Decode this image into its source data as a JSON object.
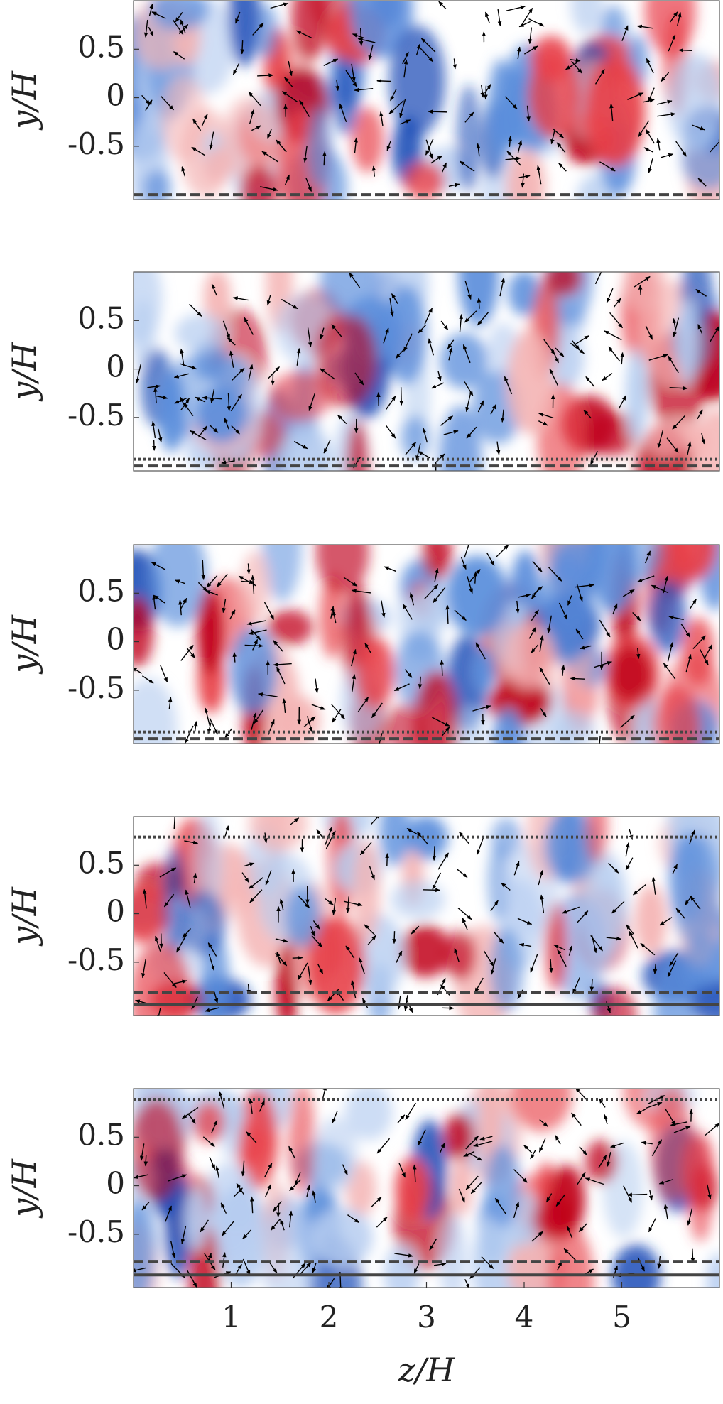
{
  "chart_data": [
    {
      "type": "heatmap",
      "ylabel": "y/H",
      "xlim": [
        0,
        6
      ],
      "ylim": [
        -1.05,
        1.0
      ],
      "yticks": [
        -0.5,
        0,
        0.5
      ],
      "lines": [
        {
          "value": -1.0,
          "style": "dashed"
        }
      ]
    },
    {
      "type": "heatmap",
      "ylabel": "y/H",
      "xlim": [
        0,
        6
      ],
      "ylim": [
        -1.05,
        1.0
      ],
      "yticks": [
        -0.5,
        0,
        0.5
      ],
      "lines": [
        {
          "value": -0.93,
          "style": "dotted"
        },
        {
          "value": -1.0,
          "style": "dashed"
        }
      ]
    },
    {
      "type": "heatmap",
      "ylabel": "y/H",
      "xlim": [
        0,
        6
      ],
      "ylim": [
        -1.05,
        1.0
      ],
      "yticks": [
        -0.5,
        0,
        0.5
      ],
      "lines": [
        {
          "value": -0.93,
          "style": "dotted"
        },
        {
          "value": -1.0,
          "style": "dashed"
        }
      ]
    },
    {
      "type": "heatmap",
      "ylabel": "y/H",
      "xlim": [
        0,
        6
      ],
      "ylim": [
        -1.05,
        1.0
      ],
      "yticks": [
        -0.5,
        0,
        0.5
      ],
      "lines": [
        {
          "value": 0.79,
          "style": "dotted"
        },
        {
          "value": -0.81,
          "style": "dashed"
        },
        {
          "value": -0.94,
          "style": "solid"
        }
      ]
    },
    {
      "type": "heatmap",
      "ylabel": "y/H",
      "xlabel": "z/H",
      "xlim": [
        0,
        6
      ],
      "ylim": [
        -1.05,
        1.0
      ],
      "yticks": [
        -0.5,
        0,
        0.5
      ],
      "xticks": [
        1,
        2,
        3,
        4,
        5
      ],
      "lines": [
        {
          "value": 0.89,
          "style": "dotted"
        },
        {
          "value": -0.78,
          "style": "dashed"
        },
        {
          "value": -0.92,
          "style": "solid"
        }
      ]
    }
  ]
}
